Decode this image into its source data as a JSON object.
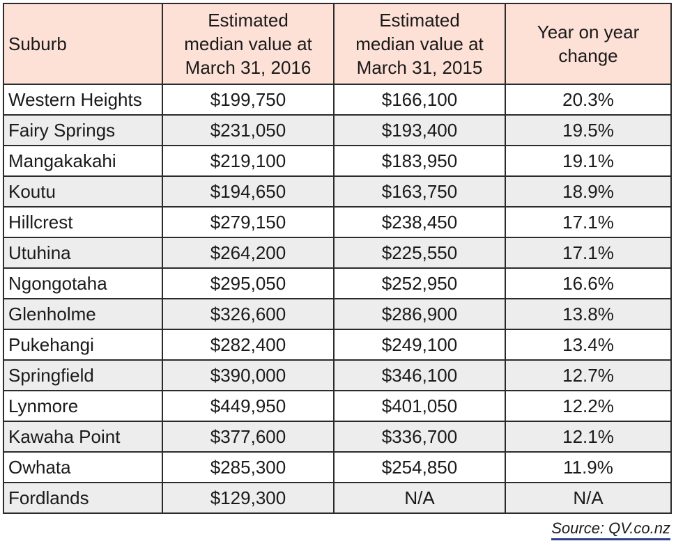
{
  "header": {
    "suburb": "Suburb",
    "col2": [
      "Estimated",
      "median value at",
      "March 31, 2016"
    ],
    "col3": [
      "Estimated",
      "median value at",
      "March 31, 2015"
    ],
    "col4": [
      "Year on year",
      "change"
    ]
  },
  "rows": [
    {
      "suburb": "Western Heights",
      "v2016": "$199,750",
      "v2015": "$166,100",
      "change": "20.3%"
    },
    {
      "suburb": "Fairy Springs",
      "v2016": "$231,050",
      "v2015": "$193,400",
      "change": "19.5%"
    },
    {
      "suburb": "Mangakakahi",
      "v2016": "$219,100",
      "v2015": "$183,950",
      "change": "19.1%"
    },
    {
      "suburb": "Koutu",
      "v2016": "$194,650",
      "v2015": "$163,750",
      "change": "18.9%"
    },
    {
      "suburb": "Hillcrest",
      "v2016": "$279,150",
      "v2015": "$238,450",
      "change": "17.1%"
    },
    {
      "suburb": "Utuhina",
      "v2016": "$264,200",
      "v2015": "$225,550",
      "change": "17.1%"
    },
    {
      "suburb": "Ngongotaha",
      "v2016": "$295,050",
      "v2015": "$252,950",
      "change": "16.6%"
    },
    {
      "suburb": "Glenholme",
      "v2016": "$326,600",
      "v2015": "$286,900",
      "change": "13.8%"
    },
    {
      "suburb": "Pukehangi",
      "v2016": "$282,400",
      "v2015": "$249,100",
      "change": "13.4%"
    },
    {
      "suburb": "Springfield",
      "v2016": "$390,000",
      "v2015": "$346,100",
      "change": "12.7%"
    },
    {
      "suburb": "Lynmore",
      "v2016": "$449,950",
      "v2015": "$401,050",
      "change": "12.2%"
    },
    {
      "suburb": "Kawaha Point",
      "v2016": "$377,600",
      "v2015": "$336,700",
      "change": "12.1%"
    },
    {
      "suburb": "Owhata",
      "v2016": "$285,300",
      "v2015": "$254,850",
      "change": "11.9%"
    },
    {
      "suburb": "Fordlands",
      "v2016": "$129,300",
      "v2015": "N/A",
      "change": "N/A"
    }
  ],
  "source": "Source: QV.co.nz",
  "colors": {
    "header_bg": "#fde0d6",
    "stripe_bg": "#ededed",
    "border": "#2b2b2b",
    "source_underline": "#2c3e8c"
  }
}
